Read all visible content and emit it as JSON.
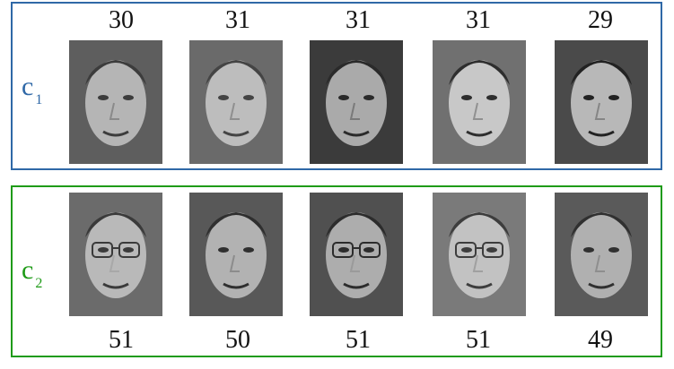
{
  "clusters": [
    {
      "label": "c",
      "subscript": "1",
      "color": "#2f68a7",
      "ages": [
        "30",
        "31",
        "31",
        "31",
        "29"
      ]
    },
    {
      "label": "c",
      "subscript": "2",
      "color": "#1f9b18",
      "ages": [
        "51",
        "50",
        "51",
        "51",
        "49"
      ]
    }
  ]
}
